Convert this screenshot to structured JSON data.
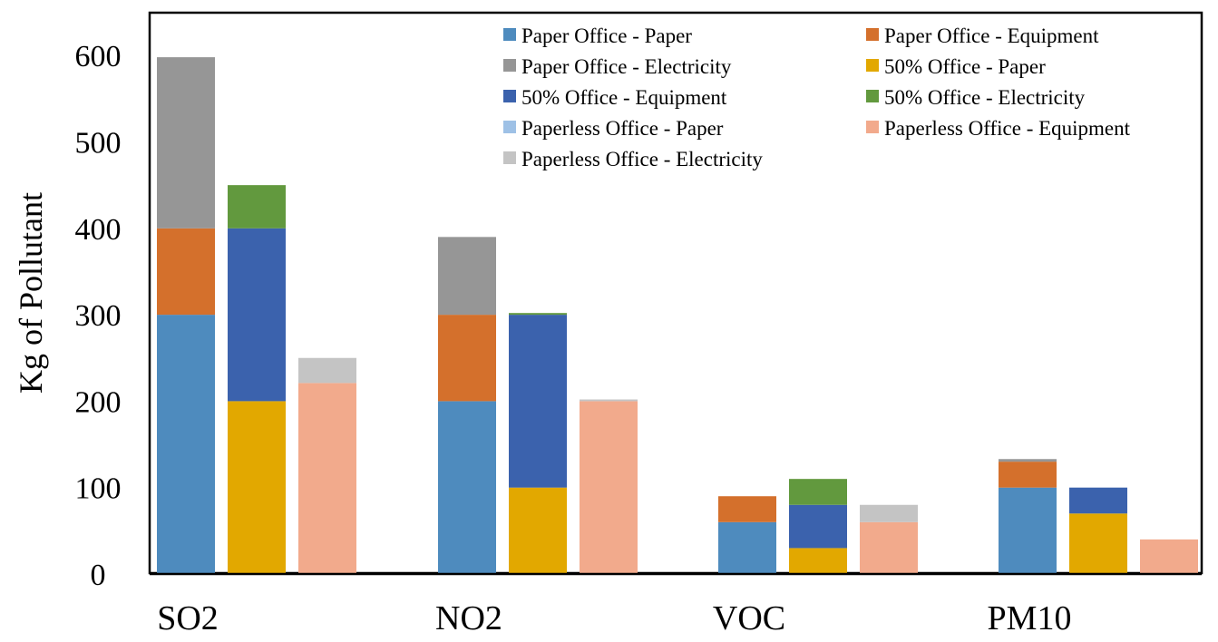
{
  "chart_data": {
    "type": "bar",
    "stacked": true,
    "grouped": true,
    "title": "",
    "xlabel": "",
    "ylabel": "Kg of Pollutant",
    "ylim": [
      0,
      600
    ],
    "yticks": [
      "0",
      "100",
      "200",
      "300",
      "400",
      "500",
      "600"
    ],
    "grid": false,
    "legend_position": "top-right",
    "categories": [
      "SO2",
      "NO2",
      "VOC",
      "PM10"
    ],
    "groups": [
      "Paper Office",
      "50% Office",
      "Paperless Office"
    ],
    "series": [
      {
        "name": "Paper Office - Paper",
        "group": "Paper Office",
        "component": "Paper",
        "color": "#4e8bbe",
        "values": [
          300,
          200,
          60,
          100
        ]
      },
      {
        "name": "Paper Office - Equipment",
        "group": "Paper Office",
        "component": "Equipment",
        "color": "#d4702c",
        "values": [
          100,
          100,
          30,
          30
        ]
      },
      {
        "name": "Paper Office - Electricity",
        "group": "Paper Office",
        "component": "Electricity",
        "color": "#969696",
        "values": [
          198,
          90,
          0,
          3
        ]
      },
      {
        "name": "50% Office - Paper",
        "group": "50% Office",
        "component": "Paper",
        "color": "#e2a800",
        "values": [
          200,
          100,
          30,
          70
        ]
      },
      {
        "name": "50% Office - Equipment",
        "group": "50% Office",
        "component": "Equipment",
        "color": "#3b62ad",
        "values": [
          200,
          200,
          50,
          30
        ]
      },
      {
        "name": "50% Office - Electricity",
        "group": "50% Office",
        "component": "Electricity",
        "color": "#62993e",
        "values": [
          50,
          2,
          30,
          0
        ]
      },
      {
        "name": "Paperless Office - Paper",
        "group": "Paperless Office",
        "component": "Paper",
        "color": "#9ec1e6",
        "values": [
          0,
          0,
          0,
          0
        ]
      },
      {
        "name": "Paperless Office - Equipment",
        "group": "Paperless Office",
        "component": "Equipment",
        "color": "#f2aa8c",
        "values": [
          221,
          200,
          60,
          40
        ]
      },
      {
        "name": "Paperless Office - Electricity",
        "group": "Paperless Office",
        "component": "Electricity",
        "color": "#c4c4c4",
        "values": [
          29,
          2,
          20,
          0
        ]
      }
    ]
  }
}
